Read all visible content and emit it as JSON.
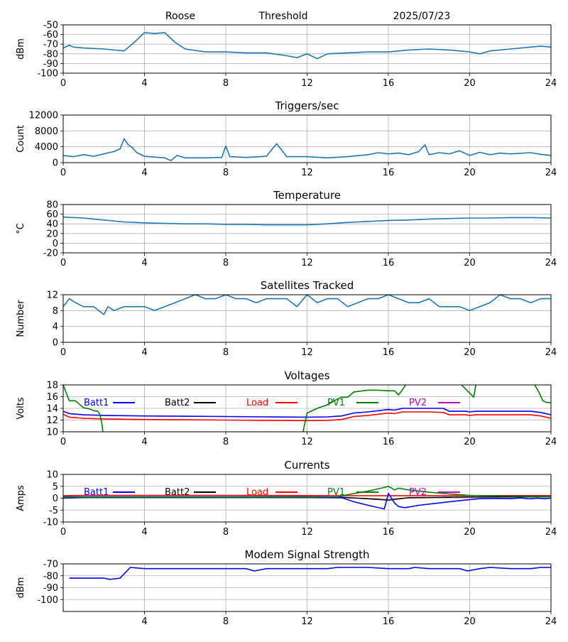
{
  "header": {
    "station": "Roose",
    "mode": "Threshold",
    "date": "2025/07/23"
  },
  "colors": {
    "default": "#1f77b4",
    "grid": "#b0b0b0",
    "batt1": "#0000ff",
    "batt2": "#000000",
    "load": "#ff0000",
    "pv1": "#008000",
    "pv2": "#bf00bf"
  },
  "chart_data": [
    {
      "type": "line",
      "title": "",
      "ylabel": "dBm",
      "xlim": [
        0,
        24
      ],
      "ylim": [
        -100,
        -50
      ],
      "xticks": [
        0,
        4,
        8,
        12,
        16,
        20,
        24
      ],
      "yticks": [
        -100,
        -90,
        -80,
        -70,
        -60,
        -50
      ],
      "grid": true,
      "series": [
        {
          "color_key": "default",
          "x": [
            0,
            0.3,
            0.5,
            1,
            2,
            3,
            3.5,
            4,
            4.5,
            5,
            5.5,
            6,
            7,
            8,
            9,
            10,
            11,
            11.5,
            12,
            12.5,
            13,
            14,
            15,
            16,
            17,
            18,
            19,
            20,
            20.5,
            21,
            22,
            23,
            23.5,
            24
          ],
          "y": [
            -74,
            -71,
            -73,
            -74,
            -75,
            -77,
            -68,
            -58,
            -59,
            -58,
            -68,
            -75,
            -78,
            -78,
            -79,
            -79,
            -82,
            -84,
            -80,
            -85,
            -80,
            -79,
            -78,
            -78,
            -76,
            -75,
            -76,
            -78,
            -80,
            -77,
            -75,
            -73,
            -72,
            -73
          ]
        }
      ]
    },
    {
      "type": "line",
      "title": "Triggers/sec",
      "ylabel": "Count",
      "xlim": [
        0,
        24
      ],
      "ylim": [
        0,
        12000
      ],
      "xticks": [
        0,
        4,
        8,
        12,
        16,
        20,
        24
      ],
      "yticks": [
        0,
        4000,
        8000,
        12000
      ],
      "grid": true,
      "series": [
        {
          "color_key": "default",
          "x": [
            0,
            0.5,
            1,
            1.5,
            2,
            2.5,
            2.8,
            3,
            3.2,
            3.4,
            3.6,
            4,
            4.5,
            5,
            5.3,
            5.6,
            6,
            7,
            7.8,
            8,
            8.2,
            9,
            10,
            10.5,
            11,
            12,
            13,
            14,
            15,
            15.5,
            16,
            16.5,
            17,
            17.5,
            17.8,
            18,
            18.5,
            19,
            19.5,
            20,
            20.5,
            21,
            21.5,
            22,
            23,
            23.5,
            24
          ],
          "y": [
            1800,
            1500,
            2000,
            1600,
            2200,
            2800,
            3500,
            6000,
            4500,
            3800,
            2600,
            1600,
            1400,
            1200,
            500,
            1800,
            1200,
            1200,
            1300,
            4200,
            1500,
            1300,
            1600,
            4800,
            1500,
            1500,
            1200,
            1500,
            2000,
            2500,
            2200,
            2400,
            2000,
            2800,
            4500,
            2000,
            2500,
            2200,
            3000,
            1800,
            2600,
            2000,
            2400,
            2200,
            2500,
            2100,
            1800
          ]
        }
      ]
    },
    {
      "type": "line",
      "title": "Temperature",
      "ylabel": "°C",
      "xlim": [
        0,
        24
      ],
      "ylim": [
        -20,
        80
      ],
      "xticks": [
        0,
        4,
        8,
        12,
        16,
        20,
        24
      ],
      "yticks": [
        -20,
        0,
        20,
        40,
        60,
        80
      ],
      "grid": true,
      "series": [
        {
          "color_key": "default",
          "x": [
            0,
            1,
            2,
            3,
            4,
            5,
            6,
            7,
            8,
            9,
            10,
            11,
            12,
            13,
            14,
            15,
            16,
            17,
            18,
            19,
            20,
            21,
            22,
            23,
            24
          ],
          "y": [
            54,
            52,
            48,
            44,
            42,
            41,
            40,
            40,
            39,
            39,
            38,
            38,
            38,
            40,
            43,
            45,
            47,
            48,
            50,
            51,
            52,
            52,
            53,
            53,
            52
          ]
        }
      ]
    },
    {
      "type": "line",
      "title": "Satellites Tracked",
      "ylabel": "Number",
      "xlim": [
        0,
        24
      ],
      "ylim": [
        0,
        12
      ],
      "xticks": [
        0,
        4,
        8,
        12,
        16,
        20,
        24
      ],
      "yticks": [
        0,
        4,
        8,
        12
      ],
      "grid": true,
      "series": [
        {
          "color_key": "default",
          "x": [
            0,
            0.3,
            0.6,
            1,
            1.5,
            2,
            2.2,
            2.5,
            3,
            3.5,
            4,
            4.5,
            5,
            5.5,
            6,
            6.5,
            7,
            7.5,
            8,
            8.5,
            9,
            9.5,
            10,
            10.5,
            11,
            11.5,
            12,
            12.5,
            13,
            13.5,
            14,
            14.5,
            15,
            15.5,
            16,
            16.5,
            17,
            17.5,
            18,
            18.5,
            19,
            19.5,
            20,
            20.5,
            21,
            21.5,
            22,
            22.5,
            23,
            23.5,
            24
          ],
          "y": [
            9,
            11,
            10,
            9,
            9,
            7,
            9,
            8,
            9,
            9,
            9,
            8,
            9,
            10,
            11,
            12,
            11,
            11,
            12,
            11,
            11,
            10,
            11,
            11,
            11,
            9,
            12,
            10,
            11,
            11,
            9,
            10,
            11,
            11,
            12,
            11,
            10,
            10,
            11,
            9,
            9,
            9,
            8,
            9,
            10,
            12,
            11,
            11,
            10,
            11,
            11
          ]
        }
      ]
    },
    {
      "type": "line",
      "title": "Voltages",
      "ylabel": "Volts",
      "xlim": [
        0,
        24
      ],
      "ylim": [
        10,
        18
      ],
      "xticks": [
        0,
        4,
        8,
        12,
        16,
        20,
        24
      ],
      "yticks": [
        10,
        12,
        14,
        16,
        18
      ],
      "grid": true,
      "legend": [
        {
          "name": "Batt1",
          "color_key": "batt1"
        },
        {
          "name": "Batt2",
          "color_key": "batt2"
        },
        {
          "name": "Load",
          "color_key": "load"
        },
        {
          "name": "PV1",
          "color_key": "pv1"
        },
        {
          "name": "PV2",
          "color_key": "pv2"
        }
      ],
      "series": [
        {
          "color_key": "batt1",
          "x": [
            0,
            0.3,
            1,
            2,
            4,
            6,
            8,
            10,
            12,
            13,
            13.7,
            14.3,
            15,
            15.5,
            16,
            16.3,
            16.7,
            17,
            18,
            18.7,
            19,
            19.8,
            20,
            20.3,
            21,
            22,
            23,
            23.5,
            24
          ],
          "y": [
            13.5,
            13.1,
            12.9,
            12.8,
            12.7,
            12.65,
            12.6,
            12.55,
            12.5,
            12.55,
            12.7,
            13.2,
            13.4,
            13.6,
            13.8,
            13.7,
            14,
            14,
            14,
            14,
            13.5,
            13.5,
            13.4,
            13.5,
            13.5,
            13.5,
            13.5,
            13.3,
            12.9
          ]
        },
        {
          "color_key": "load",
          "x": [
            0,
            0.3,
            1,
            2,
            4,
            6,
            8,
            10,
            12,
            13,
            13.7,
            14.3,
            15,
            15.5,
            16,
            16.3,
            16.7,
            17,
            18,
            18.7,
            19,
            19.8,
            20,
            20.3,
            21,
            22,
            23,
            23.5,
            24
          ],
          "y": [
            13.0,
            12.5,
            12.3,
            12.2,
            12.1,
            12.05,
            12.0,
            11.95,
            11.9,
            11.95,
            12.1,
            12.6,
            12.8,
            13.0,
            13.2,
            13.1,
            13.4,
            13.4,
            13.4,
            13.3,
            12.9,
            12.9,
            12.8,
            12.9,
            12.9,
            12.9,
            12.9,
            12.7,
            12.3
          ]
        },
        {
          "color_key": "pv1",
          "x": [
            0,
            0.3,
            0.6,
            1,
            1.3,
            1.5,
            1.7,
            1.8,
            1.9,
            1.95
          ],
          "y": [
            18,
            15.3,
            15.3,
            14.1,
            13.9,
            13.6,
            13.5,
            13.0,
            11.5,
            10
          ]
        },
        {
          "color_key": "pv1",
          "x": [
            11.8,
            12,
            12.5,
            13,
            13.5,
            13.7,
            14,
            14.3,
            15,
            15.5,
            16,
            16.3,
            16.5,
            16.7,
            16.85
          ],
          "y": [
            10,
            13.2,
            14.0,
            14.6,
            15.6,
            15.9,
            15.9,
            16.8,
            17.1,
            17.1,
            17.0,
            17.0,
            16.3,
            17.2,
            18
          ]
        },
        {
          "color_key": "pv1",
          "x": [
            19.6,
            19.8,
            20,
            20.2,
            20.3
          ],
          "y": [
            18,
            17.3,
            16.6,
            15.9,
            18
          ]
        },
        {
          "color_key": "pv1",
          "x": [
            23.2,
            23.4,
            23.6,
            23.8,
            24
          ],
          "y": [
            18,
            16.8,
            15.3,
            15.0,
            15.0
          ]
        }
      ]
    },
    {
      "type": "line",
      "title": "Currents",
      "ylabel": "Amps",
      "xlim": [
        0,
        24
      ],
      "ylim": [
        -10,
        10
      ],
      "xticks": [
        0,
        4,
        8,
        12,
        16,
        20,
        24
      ],
      "yticks": [
        -10,
        -5,
        0,
        5,
        10
      ],
      "grid": true,
      "legend": [
        {
          "name": "Batt1",
          "color_key": "batt1"
        },
        {
          "name": "Batt2",
          "color_key": "batt2"
        },
        {
          "name": "Load",
          "color_key": "load"
        },
        {
          "name": "PV1",
          "color_key": "pv1"
        },
        {
          "name": "PV2",
          "color_key": "pv2"
        }
      ],
      "series": [
        {
          "color_key": "load",
          "x": [
            0,
            1,
            4,
            8,
            12,
            16,
            20,
            24
          ],
          "y": [
            1.0,
            1.2,
            1.2,
            1.2,
            1.1,
            1.0,
            1.1,
            1.1
          ]
        },
        {
          "color_key": "batt2",
          "x": [
            0,
            4,
            8,
            12,
            13.5,
            14.5,
            15.5,
            16,
            16.5,
            17,
            18,
            20,
            24
          ],
          "y": [
            0.6,
            0.6,
            0.6,
            0.6,
            0.5,
            0.0,
            -0.5,
            -0.8,
            -0.3,
            0.2,
            0.3,
            0.5,
            0.6
          ]
        },
        {
          "color_key": "batt1",
          "x": [
            0,
            1,
            4,
            8,
            12,
            13.7,
            14.3,
            15,
            15.8,
            16,
            16.3,
            16.5,
            16.8,
            17.5,
            18.5,
            19.5,
            20.5,
            21.5,
            22,
            22.5,
            23,
            23.3,
            23.7,
            24
          ],
          "y": [
            0,
            0.3,
            0.3,
            0.3,
            0.3,
            0.2,
            -1.5,
            -3.0,
            -4.5,
            2.0,
            -2.0,
            -3.5,
            -4.0,
            -3.0,
            -2.0,
            -1.0,
            -0.2,
            -0.1,
            -0.2,
            0.1,
            -0.3,
            0.0,
            -0.2,
            0.0
          ]
        },
        {
          "color_key": "pv1",
          "x": [
            0,
            1,
            4,
            8,
            12,
            13.5,
            14,
            15,
            15.8,
            16,
            16.3,
            16.5,
            17,
            18,
            19,
            20,
            21,
            22,
            23,
            24
          ],
          "y": [
            0.5,
            0.5,
            0.5,
            0.5,
            0.5,
            0.6,
            1.5,
            3.0,
            4.5,
            5.0,
            3.5,
            4.2,
            3.5,
            2.5,
            1.8,
            1.2,
            1.0,
            0.9,
            0.8,
            0.7
          ]
        }
      ]
    },
    {
      "type": "line",
      "title": "Modem Signal Strength",
      "ylabel": "dBm",
      "xlim": [
        0,
        24
      ],
      "ylim": [
        -110,
        -70
      ],
      "xticks": [
        4,
        8,
        12,
        16,
        20,
        24
      ],
      "yticks": [
        -100,
        -90,
        -80,
        -70
      ],
      "grid": true,
      "series": [
        {
          "color_key": "batt1",
          "x": [
            0.3,
            1,
            2,
            2.3,
            2.8,
            3.3,
            4,
            5,
            6,
            7,
            8,
            9,
            9.4,
            10,
            11,
            12,
            13,
            13.5,
            14,
            15,
            16,
            17,
            17.3,
            18,
            19,
            19.5,
            19.9,
            20.5,
            21,
            22,
            22.5,
            23,
            23.5,
            24
          ],
          "y": [
            -82,
            -82,
            -82,
            -83,
            -82,
            -73,
            -74,
            -74,
            -74,
            -74,
            -74,
            -74,
            -76,
            -74,
            -74,
            -74,
            -74,
            -73,
            -73,
            -73,
            -74,
            -74,
            -73,
            -74,
            -74,
            -74,
            -76,
            -74,
            -73,
            -74,
            -74,
            -74,
            -73,
            -73
          ]
        }
      ]
    }
  ]
}
